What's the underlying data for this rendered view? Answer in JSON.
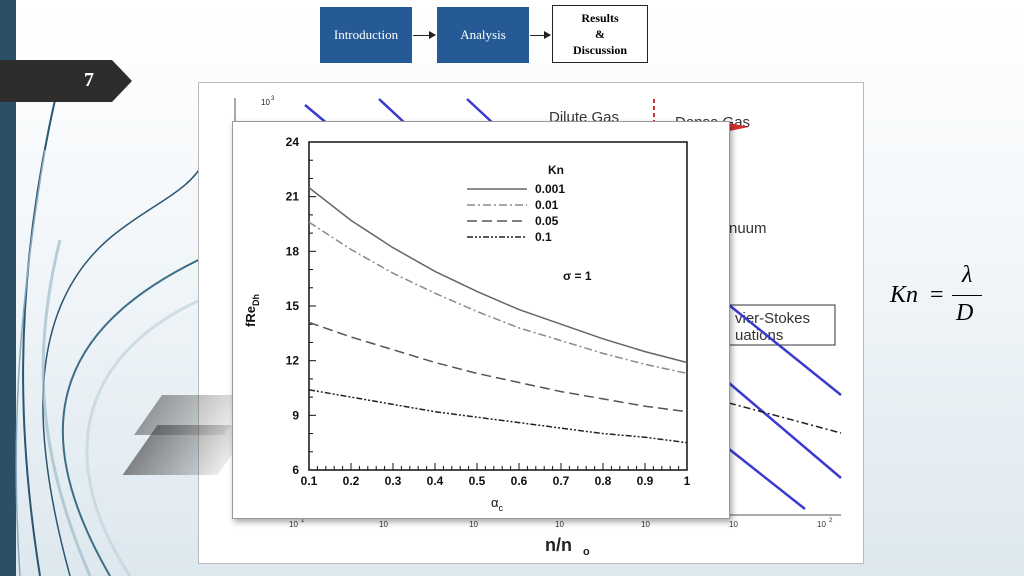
{
  "slide": {
    "number": "7"
  },
  "nav": {
    "intro": "Introduction",
    "analysis": "Analysis",
    "results_line1": "Results",
    "results_line2": "&",
    "results_line3": "Discussion"
  },
  "background_figure": {
    "top_left_label": "Dilute Gas",
    "top_right_label": "Dense Gas",
    "continuum_label": "nuum",
    "ns_label_1": "vier-Stokes",
    "ns_label_2": "uations",
    "x_label": "n/n",
    "x_label_sub": "o",
    "y_top_tick": "10",
    "y_top_tick_sup": "3",
    "x_ticks": [
      "10",
      "10",
      "10",
      "10",
      "10",
      "10"
    ],
    "x_tick_last": "10",
    "x_tick_last_sup": "2",
    "x_tick_1_sup": "1"
  },
  "formula": {
    "lhs": "Kn",
    "eq": "=",
    "num": "λ",
    "den": "D"
  },
  "chart_data": {
    "type": "line",
    "xlabel": "α",
    "xlabel_sub": "c",
    "ylabel": "fRe",
    "ylabel_sub": "Dh",
    "xlim": [
      0.1,
      1.0
    ],
    "ylim": [
      6,
      24
    ],
    "x_ticks": [
      "0.1",
      "0.2",
      "0.3",
      "0.4",
      "0.5",
      "0.6",
      "0.7",
      "0.8",
      "0.9",
      "1"
    ],
    "y_ticks": [
      "6",
      "9",
      "12",
      "15",
      "18",
      "21",
      "24"
    ],
    "legend_title": "Kn",
    "annotation": "σ = 1",
    "x": [
      0.1,
      0.2,
      0.3,
      0.4,
      0.5,
      0.6,
      0.7,
      0.8,
      0.9,
      1.0
    ],
    "series": [
      {
        "name": "0.001",
        "values": [
          21.5,
          19.7,
          18.2,
          16.9,
          15.8,
          14.8,
          14.0,
          13.2,
          12.5,
          11.9
        ],
        "color": "#666666",
        "dash": ""
      },
      {
        "name": "0.01",
        "values": [
          19.6,
          18.1,
          16.8,
          15.7,
          14.7,
          13.8,
          13.1,
          12.4,
          11.8,
          11.3
        ],
        "color": "#8a8a8a",
        "dash": "8,3,2,3"
      },
      {
        "name": "0.05",
        "values": [
          14.1,
          13.3,
          12.6,
          11.9,
          11.3,
          10.8,
          10.3,
          9.9,
          9.5,
          9.2
        ],
        "color": "#555555",
        "dash": "10,5"
      },
      {
        "name": "0.1",
        "values": [
          10.4,
          10.0,
          9.6,
          9.2,
          8.9,
          8.6,
          8.3,
          8.0,
          7.8,
          7.5
        ],
        "color": "#222222",
        "dash": "6,2,2,2,2,2"
      }
    ]
  }
}
